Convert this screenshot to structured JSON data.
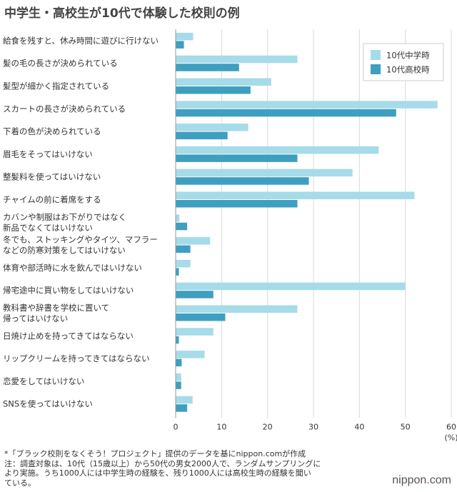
{
  "chart_data": {
    "type": "bar",
    "orientation": "horizontal",
    "title": "中学生・高校生が10代で体験した校則の例",
    "categories": [
      "給食を残すと、休み時間に遊びに行けない",
      "髪の毛の長さが決められている",
      "髪型が細かく指定されている",
      "スカートの長さが決められている",
      "下着の色が決められている",
      "眉毛をそってはいけない",
      "整髪料を使ってはいけない",
      "チャイムの前に着席をする",
      "カバンや制服はお下がりではなく\n新品でなくてはいけない",
      "冬でも、ストッキングやタイツ、マフラー\nなどの防寒対策をしてはいけない",
      "体育や部活時に水を飲んではいけない",
      "帰宅途中に買い物をしてはいけない",
      "教科書や辞書を学校に置いて\n帰ってはいけない",
      "日焼け止めを持ってきてはならない",
      "リップクリームを持ってきてはならない",
      "恋愛をしてはいけない",
      "SNSを使ってはいけない"
    ],
    "series": [
      {
        "name": "10代中学時",
        "color": "#a6dbe9",
        "values": [
          3.8,
          26.5,
          20.8,
          57.0,
          15.8,
          44.2,
          38.5,
          52.0,
          0.8,
          7.5,
          3.2,
          50.0,
          26.5,
          8.2,
          6.3,
          1.2,
          3.7
        ]
      },
      {
        "name": "10代高校時",
        "color": "#3f9fc0",
        "values": [
          1.8,
          13.8,
          16.3,
          48.0,
          11.3,
          26.5,
          29.0,
          26.5,
          2.5,
          3.2,
          0.7,
          8.2,
          10.8,
          0.7,
          1.3,
          1.2,
          2.5
        ]
      }
    ],
    "xlim": [
      0,
      60
    ],
    "xticks": [
      "0",
      "10",
      "20",
      "30",
      "40",
      "50",
      "60"
    ],
    "unit_label": "(%)",
    "legend_position": "top-right"
  },
  "notes": {
    "source": "*「ブラック校則をなくそう！プロジェクト」提供のデータを基にnippon.comが作成",
    "note": "注：調査対象は、10代（15歳以上）から50代の男女2000人で、ランダムサンプリングに\nより実施。うち1000人には中学生時の経験を、残り1000人には高校生時の経験を聞い\nている。"
  },
  "brand": {
    "prefix": "nippon",
    "dot": ".",
    "suffix": "com"
  }
}
